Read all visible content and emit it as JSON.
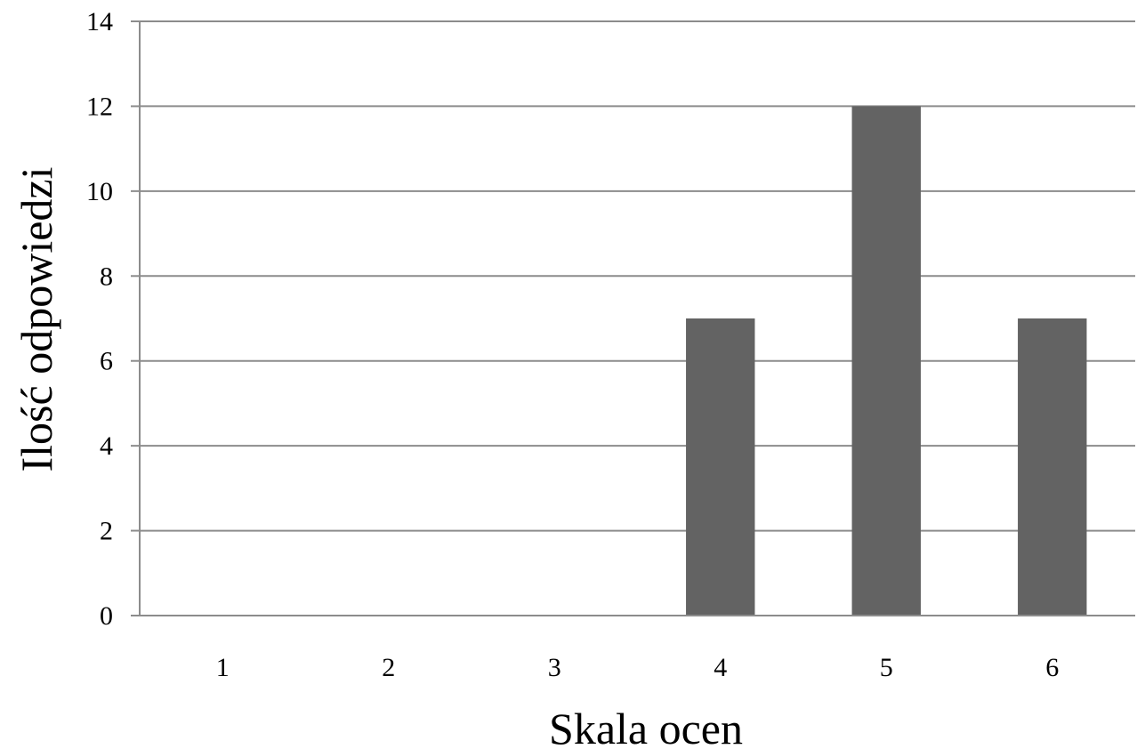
{
  "chart_data": {
    "type": "bar",
    "categories": [
      "1",
      "2",
      "3",
      "4",
      "5",
      "6"
    ],
    "values": [
      0,
      0,
      0,
      7,
      12,
      7
    ],
    "title": "",
    "xlabel": "Skala ocen",
    "ylabel": "Ilość odpowiedzi",
    "ylim": [
      0,
      14
    ],
    "yticks": [
      "0",
      "2",
      "4",
      "6",
      "8",
      "10",
      "12",
      "14"
    ],
    "grid": true,
    "legend": "none",
    "bar_color": "#636363",
    "grid_color": "#8c8c8c"
  }
}
